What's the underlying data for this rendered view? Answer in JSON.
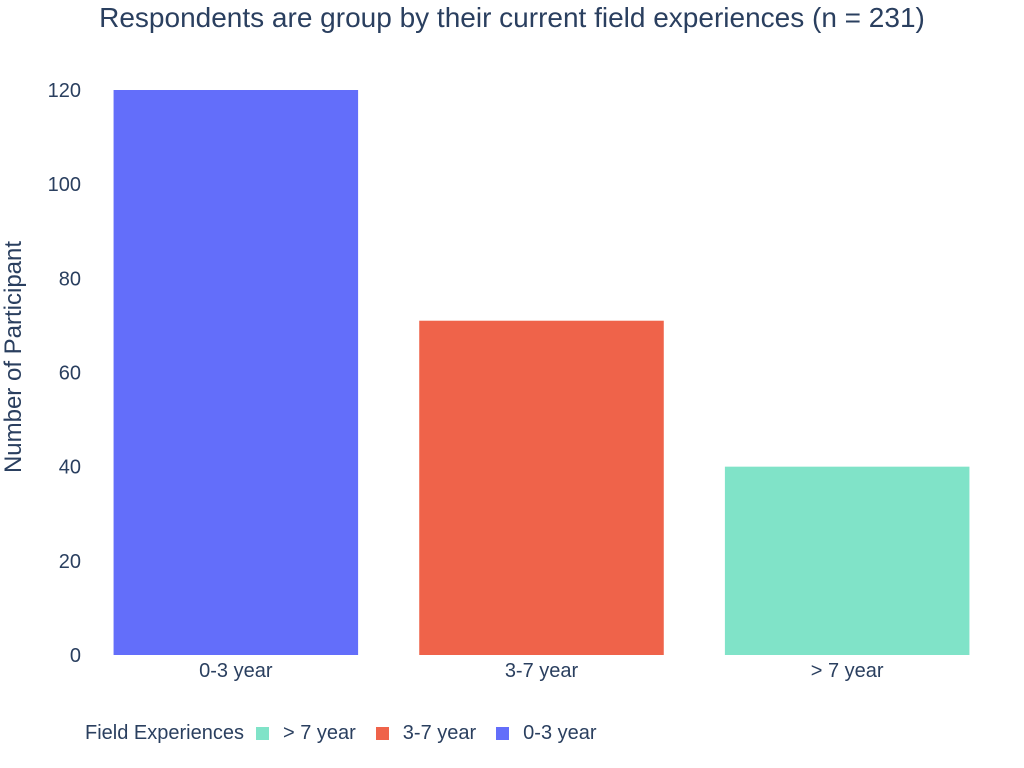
{
  "chart_data": {
    "type": "bar",
    "title": "Respondents are group by their current field experiences (n = 231)",
    "xlabel": "",
    "ylabel": "Number of Participant",
    "categories": [
      "0-3 year",
      "3-7 year",
      "> 7 year"
    ],
    "values": [
      120,
      71,
      40
    ],
    "colors": [
      "#636efa",
      "#ef634a",
      "#80e3c8"
    ],
    "ylim": [
      0,
      120
    ],
    "yticks": [
      0,
      20,
      40,
      60,
      80,
      100,
      120
    ],
    "grid": false,
    "legend": {
      "title": "Field Experiences",
      "position": "bottom-left",
      "entries": [
        {
          "label": "> 7 year",
          "color": "#80e3c8"
        },
        {
          "label": "3-7 year",
          "color": "#ef634a"
        },
        {
          "label": "0-3 year",
          "color": "#636efa"
        }
      ]
    }
  }
}
